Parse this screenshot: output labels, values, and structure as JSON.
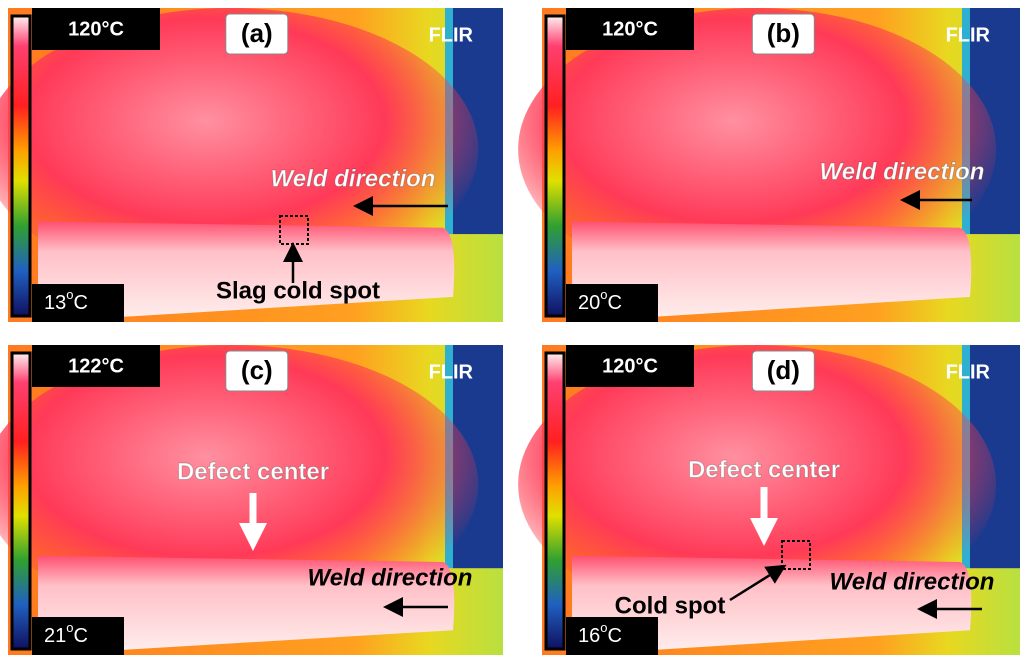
{
  "panels": [
    {
      "label": "(a)",
      "max_temp": "120°C",
      "min_temp": {
        "number": "13",
        "degree": "o",
        "unit": "C"
      },
      "brand": "FLIR",
      "annotations": [
        "Weld direction",
        "Slag cold spot"
      ]
    },
    {
      "label": "(b)",
      "max_temp": "120°C",
      "min_temp": {
        "number": "20",
        "degree": "o",
        "unit": "C"
      },
      "brand": "FLIR",
      "annotations": [
        "Weld direction"
      ]
    },
    {
      "label": "(c)",
      "max_temp": "122°C",
      "min_temp": {
        "number": "21",
        "degree": "o",
        "unit": "C"
      },
      "brand": "FLIR",
      "annotations": [
        "Defect center",
        "Weld direction"
      ]
    },
    {
      "label": "(d)",
      "max_temp": "120°C",
      "min_temp": {
        "number": "16",
        "degree": "o",
        "unit": "C"
      },
      "brand": "FLIR",
      "annotations": [
        "Defect center",
        "Cold spot",
        "Weld direction"
      ]
    }
  ]
}
